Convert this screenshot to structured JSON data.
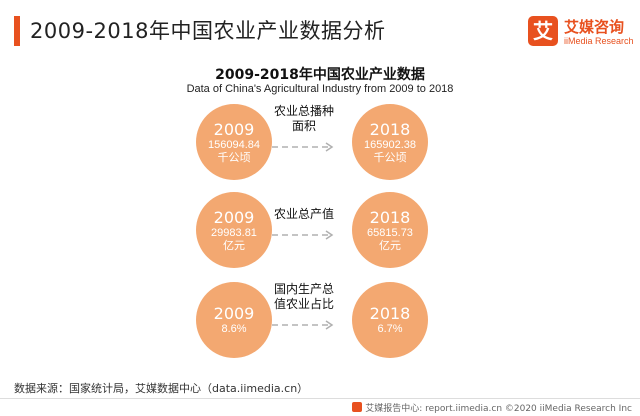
{
  "header": {
    "title": "2009-2018年中国农业产业数据分析",
    "logo_badge": "艾",
    "logo_cn": "艾媒咨询",
    "logo_en": "iiMedia Research"
  },
  "chart_data": {
    "type": "table",
    "title": "2009-2018年中国农业产业数据",
    "subtitle": "Data of China's Agricultural Industry from 2009 to 2018",
    "rows": [
      {
        "metric": "农业总播种面积",
        "metric_lines": [
          "农业总播种",
          "面积"
        ],
        "start": {
          "year": "2009",
          "value": "156094.84",
          "unit": "千公顷"
        },
        "end": {
          "year": "2018",
          "value": "165902.38",
          "unit": "千公顷"
        }
      },
      {
        "metric": "农业总产值",
        "metric_lines": [
          "农业总产值"
        ],
        "start": {
          "year": "2009",
          "value": "29983.81",
          "unit": "亿元"
        },
        "end": {
          "year": "2018",
          "value": "65815.73",
          "unit": "亿元"
        }
      },
      {
        "metric": "国内生产总值农业占比",
        "metric_lines": [
          "国内生产总",
          "值农业占比"
        ],
        "start": {
          "year": "2009",
          "value": "8.6%",
          "unit": ""
        },
        "end": {
          "year": "2018",
          "value": "6.7%",
          "unit": ""
        }
      }
    ]
  },
  "source": "数据来源：国家统计局，艾媒数据中心（data.iimedia.cn）",
  "footer": "艾媒报告中心: report.iimedia.cn ©2020 iiMedia Research Inc",
  "colors": {
    "accent": "#e8511f",
    "bubble": "#f3a871",
    "arrow": "#b0b0b0"
  }
}
